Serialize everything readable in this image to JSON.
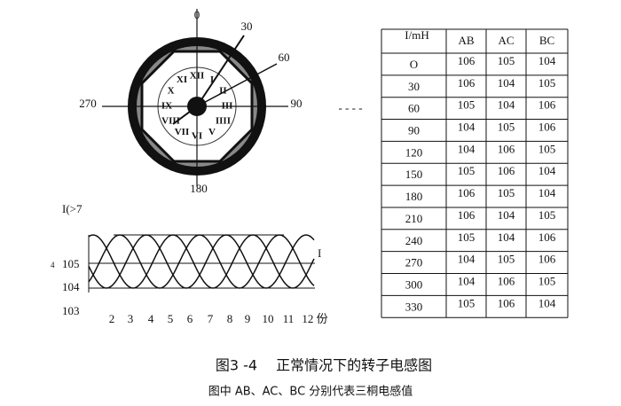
{
  "dial": {
    "angles": {
      "top": "0",
      "a30": "30",
      "a60": "60",
      "right": "90",
      "bottom": "180",
      "left": "270"
    },
    "numerals": [
      "XII",
      "I",
      "II",
      "III",
      "IIII",
      "V",
      "VI",
      "VII",
      "VIII",
      "IX",
      "X",
      "XI"
    ]
  },
  "connector": "- - - -",
  "table": {
    "header": [
      "I/mH",
      "AB",
      "AC",
      "BC"
    ],
    "rows": [
      [
        "O",
        106,
        105,
        104
      ],
      [
        "30",
        106,
        104,
        105
      ],
      [
        "60",
        105,
        104,
        106
      ],
      [
        "90",
        104,
        105,
        106
      ],
      [
        "120",
        104,
        106,
        105
      ],
      [
        "150",
        105,
        106,
        104
      ],
      [
        "180",
        106,
        105,
        104
      ],
      [
        "210",
        106,
        104,
        105
      ],
      [
        "240",
        105,
        104,
        106
      ],
      [
        "270",
        104,
        105,
        106
      ],
      [
        "300",
        104,
        106,
        105
      ],
      [
        "330",
        105,
        106,
        104
      ]
    ]
  },
  "wave": {
    "ylabel": "I(>7",
    "side_mark": "4",
    "levels": [
      "105",
      "104",
      "103"
    ],
    "marker": "I",
    "xlabels": [
      "2",
      "3",
      "4",
      "5",
      "6",
      "7",
      "8",
      "9",
      "10",
      "11",
      "12 份"
    ]
  },
  "caption": {
    "title": "图3 -4　 正常情况下的转子电感图",
    "note": "图中 AB、AC、BC 分别代表三桐电感值"
  }
}
